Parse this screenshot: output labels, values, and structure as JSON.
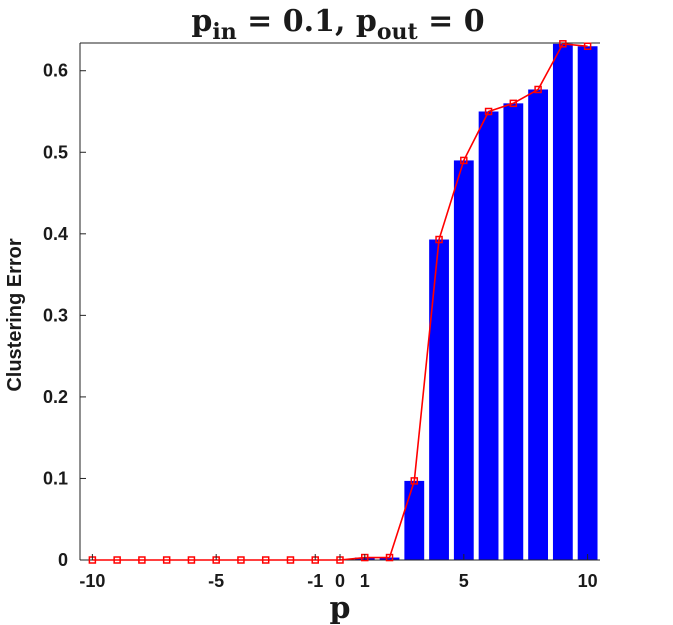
{
  "chart_data": {
    "type": "bar",
    "title": {
      "p1": "p",
      "p1_sub": "in",
      "eq1": " = ",
      "v1": "0.1",
      "sep": ", ",
      "p2": "p",
      "p2_sub": "out",
      "eq2": " = ",
      "v2": "0"
    },
    "xlabel": "p",
    "ylabel": "Clustering Error",
    "x": [
      -10,
      -9,
      -8,
      -7,
      -6,
      -5,
      -4,
      -3,
      -2,
      -1,
      0,
      1,
      2,
      3,
      4,
      5,
      6,
      7,
      8,
      9,
      10
    ],
    "values": [
      0,
      0,
      0,
      0,
      0,
      0,
      0,
      0,
      0,
      0,
      0,
      0.003,
      0.003,
      0.097,
      0.393,
      0.49,
      0.55,
      0.56,
      0.577,
      0.633,
      0.63
    ],
    "line_values": [
      0,
      0,
      0,
      0,
      0,
      0,
      0,
      0,
      0,
      0,
      0,
      0.003,
      0.003,
      0.097,
      0.393,
      0.49,
      0.55,
      0.56,
      0.577,
      0.633,
      0.63
    ],
    "xlim": [
      -10.5,
      10.5
    ],
    "ylim": [
      0,
      0.634
    ],
    "xtick_values": [
      -10,
      -5,
      -1,
      0,
      1,
      5,
      10
    ],
    "xtick_labels": [
      "-10",
      "-5",
      "-1",
      "0",
      "1",
      "5",
      "10"
    ],
    "ytick_values": [
      0,
      0.1,
      0.2,
      0.3,
      0.4,
      0.5,
      0.6
    ],
    "ytick_labels": [
      "0",
      "0.1",
      "0.2",
      "0.3",
      "0.4",
      "0.5",
      "0.6"
    ],
    "bar_color": "#0000ff",
    "line_color": "#ff0000",
    "grid": false
  }
}
